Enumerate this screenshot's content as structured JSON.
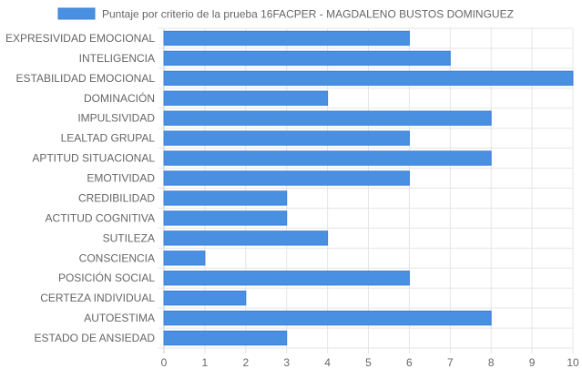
{
  "chart_data": {
    "type": "bar",
    "orientation": "horizontal",
    "categories": [
      "EXPRESIVIDAD EMOCIONAL",
      "INTELIGENCIA",
      "ESTABILIDAD EMOCIONAL",
      "DOMINACIÓN",
      "IMPULSIVIDAD",
      "LEALTAD GRUPAL",
      "APTITUD SITUACIONAL",
      "EMOTIVIDAD",
      "CREDIBILIDAD",
      "ACTITUD COGNITIVA",
      "SUTILEZA",
      "CONSCIENCIA",
      "POSICIÓN SOCIAL",
      "CERTEZA INDIVIDUAL",
      "AUTOESTIMA",
      "ESTADO DE ANSIEDAD"
    ],
    "series": [
      {
        "name": "Puntaje por criterio de la prueba 16FACPER - MAGDALENO BUSTOS DOMINGUEZ",
        "values": [
          6,
          7,
          10,
          4,
          8,
          6,
          8,
          6,
          3,
          3,
          4,
          1,
          6,
          2,
          8,
          3
        ],
        "color": "#4a90e2"
      }
    ],
    "xlim": [
      0,
      10
    ],
    "xticks": [
      0,
      1,
      2,
      3,
      4,
      5,
      6,
      7,
      8,
      9,
      10
    ],
    "grid": true,
    "legend_position": "top-center",
    "colors": {
      "bar_fill": "#4a90e2",
      "bar_stroke": "#3b7fd6",
      "grid": "#e5e5e5",
      "text": "#666666"
    }
  }
}
